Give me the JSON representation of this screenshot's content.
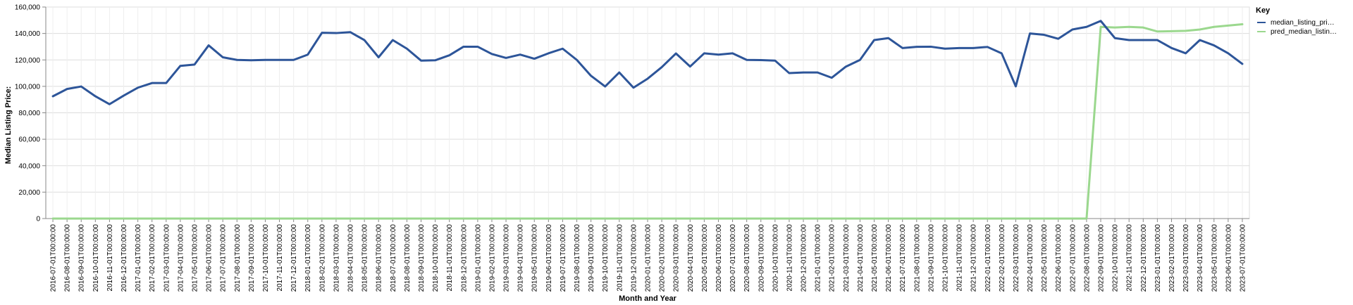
{
  "chart_data": {
    "type": "line",
    "xlabel": "Month and Year",
    "ylabel": "Median Listing Price:",
    "ylim": [
      0,
      160000
    ],
    "yticks": [
      "0",
      "20,000",
      "40,000",
      "60,000",
      "80,000",
      "100,000",
      "120,000",
      "140,000",
      "160,000"
    ],
    "grid": true,
    "legend": {
      "title": "Key",
      "position": "right",
      "entries": [
        "median_listing_pri…",
        "pred_median_listin…"
      ]
    },
    "x": [
      "2016-07-01T00:00:00",
      "2016-08-01T00:00:00",
      "2016-09-01T00:00:00",
      "2016-10-01T00:00:00",
      "2016-11-01T00:00:00",
      "2016-12-01T00:00:00",
      "2017-01-01T00:00:00",
      "2017-02-01T00:00:00",
      "2017-03-01T00:00:00",
      "2017-04-01T00:00:00",
      "2017-05-01T00:00:00",
      "2017-06-01T00:00:00",
      "2017-07-01T00:00:00",
      "2017-08-01T00:00:00",
      "2017-09-01T00:00:00",
      "2017-10-01T00:00:00",
      "2017-11-01T00:00:00",
      "2017-12-01T00:00:00",
      "2018-01-01T00:00:00",
      "2018-02-01T00:00:00",
      "2018-03-01T00:00:00",
      "2018-04-01T00:00:00",
      "2018-05-01T00:00:00",
      "2018-06-01T00:00:00",
      "2018-07-01T00:00:00",
      "2018-08-01T00:00:00",
      "2018-09-01T00:00:00",
      "2018-10-01T00:00:00",
      "2018-11-01T00:00:00",
      "2018-12-01T00:00:00",
      "2019-01-01T00:00:00",
      "2019-02-01T00:00:00",
      "2019-03-01T00:00:00",
      "2019-04-01T00:00:00",
      "2019-05-01T00:00:00",
      "2019-06-01T00:00:00",
      "2019-07-01T00:00:00",
      "2019-08-01T00:00:00",
      "2019-09-01T00:00:00",
      "2019-10-01T00:00:00",
      "2019-11-01T00:00:00",
      "2019-12-01T00:00:00",
      "2020-01-01T00:00:00",
      "2020-02-01T00:00:00",
      "2020-03-01T00:00:00",
      "2020-04-01T00:00:00",
      "2020-05-01T00:00:00",
      "2020-06-01T00:00:00",
      "2020-07-01T00:00:00",
      "2020-08-01T00:00:00",
      "2020-09-01T00:00:00",
      "2020-10-01T00:00:00",
      "2020-11-01T00:00:00",
      "2020-12-01T00:00:00",
      "2021-01-01T00:00:00",
      "2021-02-01T00:00:00",
      "2021-03-01T00:00:00",
      "2021-04-01T00:00:00",
      "2021-05-01T00:00:00",
      "2021-06-01T00:00:00",
      "2021-07-01T00:00:00",
      "2021-08-01T00:00:00",
      "2021-09-01T00:00:00",
      "2021-10-01T00:00:00",
      "2021-11-01T00:00:00",
      "2021-12-01T00:00:00",
      "2022-01-01T00:00:00",
      "2022-02-01T00:00:00",
      "2022-03-01T00:00:00",
      "2022-04-01T00:00:00",
      "2022-05-01T00:00:00",
      "2022-06-01T00:00:00",
      "2022-07-01T00:00:00",
      "2022-08-01T00:00:00",
      "2022-09-01T00:00:00",
      "2022-10-01T00:00:00",
      "2022-11-01T00:00:00",
      "2022-12-01T00:00:00",
      "2023-01-01T00:00:00",
      "2023-02-01T00:00:00",
      "2023-03-01T00:00:00",
      "2023-04-01T00:00:00",
      "2023-05-01T00:00:00",
      "2023-06-01T00:00:00",
      "2023-07-01T00:00:00"
    ],
    "series": [
      {
        "name": "median_listing_pri…",
        "color": "#2d5599",
        "values": [
          92500,
          98000,
          99900,
          92500,
          86500,
          93000,
          99000,
          102500,
          102500,
          115500,
          116500,
          131000,
          122000,
          120000,
          119700,
          120000,
          120000,
          120000,
          124000,
          140500,
          140300,
          141000,
          135000,
          122000,
          135000,
          128500,
          119500,
          119700,
          123500,
          130000,
          130000,
          124500,
          121500,
          124000,
          120900,
          125000,
          128500,
          120000,
          108000,
          99900,
          110500,
          99000,
          105800,
          114500,
          124900,
          115000,
          125000,
          124000,
          125000,
          120000,
          119900,
          119500,
          110000,
          110500,
          110500,
          106500,
          114900,
          120000,
          135000,
          136500,
          129000,
          129900,
          130000,
          128500,
          129000,
          129000,
          129800,
          125000,
          100000,
          140000,
          139000,
          136000,
          143000,
          145000,
          149500,
          136500,
          135000,
          135000,
          135000,
          129000,
          125000,
          135000,
          131000,
          125000,
          117000
        ]
      },
      {
        "name": "pred_median_listin…",
        "color": "#9bd88e",
        "values": [
          0,
          0,
          0,
          0,
          0,
          0,
          0,
          0,
          0,
          0,
          0,
          0,
          0,
          0,
          0,
          0,
          0,
          0,
          0,
          0,
          0,
          0,
          0,
          0,
          0,
          0,
          0,
          0,
          0,
          0,
          0,
          0,
          0,
          0,
          0,
          0,
          0,
          0,
          0,
          0,
          0,
          0,
          0,
          0,
          0,
          0,
          0,
          0,
          0,
          0,
          0,
          0,
          0,
          0,
          0,
          0,
          0,
          0,
          0,
          0,
          0,
          0,
          0,
          0,
          0,
          0,
          0,
          0,
          0,
          0,
          0,
          0,
          0,
          0,
          145000,
          144500,
          145000,
          144500,
          141500,
          141700,
          142000,
          143000,
          145000,
          146000,
          147000
        ]
      }
    ]
  }
}
